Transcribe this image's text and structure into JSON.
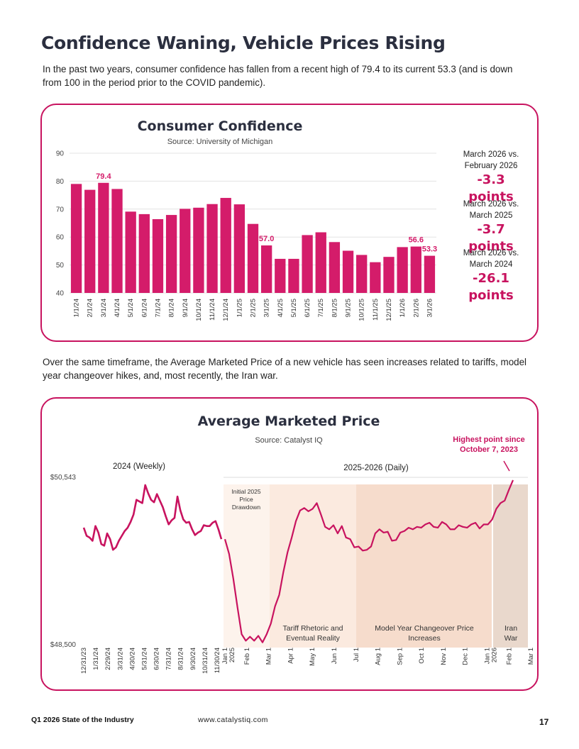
{
  "page": {
    "title": "Confidence Waning, Vehicle Prices Rising",
    "intro": "In the past two years, consumer confidence has fallen from a recent high of 79.4 to its current 53.3 (and is down from 100 in the period prior to the COVID pandemic).",
    "mid_text": "Over the same timeframe, the Average Marketed Price of a new vehicle has seen increases related to tariffs, model year changeover hikes, and, most recently, the Iran war.",
    "footer_left": "Q1 2026 State of the Industry",
    "footer_mid": "www.catalystiq.com",
    "page_number": "17"
  },
  "stats": [
    {
      "label": "March 2026 vs. February 2026",
      "value": "-3.3 points"
    },
    {
      "label": "March 2026 vs. March 2025",
      "value": "-3.7 points"
    },
    {
      "label": "March 2026 vs. March 2024",
      "value": "-26.1 points"
    }
  ],
  "colors": {
    "accent": "#c8135f",
    "title": "#2b2f3f"
  },
  "chart_data": [
    {
      "type": "bar",
      "title": "Consumer Confidence",
      "subtitle": "Source: University of Michigan",
      "categories": [
        "1/1/24",
        "2/1/24",
        "3/1/24",
        "4/1/24",
        "5/1/24",
        "6/1/24",
        "7/1/24",
        "8/1/24",
        "9/1/24",
        "10/1/24",
        "11/1/24",
        "12/1/24",
        "1/1/25",
        "2/1/25",
        "3/1/25",
        "4/1/25",
        "5/1/25",
        "6/1/25",
        "7/1/25",
        "8/1/25",
        "9/1/25",
        "10/1/25",
        "11/1/25",
        "12/1/25",
        "1/1/26",
        "2/1/26",
        "3/1/26"
      ],
      "values": [
        79.0,
        76.9,
        79.4,
        77.2,
        69.1,
        68.2,
        66.4,
        67.9,
        70.1,
        70.5,
        71.8,
        74.0,
        71.7,
        64.7,
        57.0,
        52.2,
        52.2,
        60.7,
        61.7,
        58.2,
        55.1,
        53.6,
        51.0,
        52.9,
        56.4,
        56.6,
        53.3
      ],
      "data_labels": [
        {
          "index": 2,
          "text": "79.4"
        },
        {
          "index": 14,
          "text": "57.0"
        },
        {
          "index": 25,
          "text": "56.6"
        },
        {
          "index": 26,
          "text": "53.3"
        }
      ],
      "ylim": [
        40,
        90
      ],
      "yticks": [
        40,
        50,
        60,
        70,
        80,
        90
      ],
      "grid": true,
      "color": "#d41c6a"
    },
    {
      "type": "line",
      "title": "Average Marketed Price",
      "subtitle": "Source:  Catalyst IQ",
      "ylim": [
        48500,
        50543
      ],
      "ytick_labels": [
        "$48,500",
        "$50,543"
      ],
      "section_labels": [
        "2024 (Weekly)",
        "2025-2026 (Daily)"
      ],
      "x_labels_weekly": [
        "12/31/23",
        "1/31/24",
        "2/29/24",
        "3/31/24",
        "4/30/24",
        "5/31/24",
        "6/30/24",
        "7/31/24",
        "8/31/24",
        "9/30/24",
        "10/31/24",
        "11/30/24"
      ],
      "x_labels_daily": [
        "Jan 1 2025",
        "Feb 1",
        "Mar 1",
        "Apr 1",
        "May 1",
        "Jun 1",
        "Jul 1",
        "Aug 1",
        "Sep 1",
        "Oct 1",
        "Nov 1",
        "Dec 1",
        "Jan 1 2026",
        "Feb 1",
        "Mar 1"
      ],
      "bands": [
        {
          "label": "Initial 2025 Price Drawdown",
          "color": "#fdf3ec"
        },
        {
          "label": "Tariff Rhetoric and Eventual Reality",
          "color": "#fbeadf"
        },
        {
          "label": "Model Year Changeover Price Increases",
          "color": "#f6dccc"
        },
        {
          "label": "Iran War",
          "color": "#e9d8cc"
        }
      ],
      "annotation": "Highest point since October 7, 2023",
      "weekly_values": [
        49920,
        49820,
        49800,
        49760,
        49940,
        49860,
        49720,
        49700,
        49850,
        49780,
        49650,
        49680,
        49760,
        49820,
        49880,
        49920,
        49990,
        50080,
        50260,
        50240,
        50220,
        50440,
        50340,
        50260,
        50230,
        50330,
        50250,
        50170,
        50060,
        49960,
        50010,
        50040,
        50300,
        50130,
        50020,
        49980,
        49990,
        49900,
        49830,
        49860,
        49880,
        49950,
        49940,
        49940,
        49980,
        50000,
        49900,
        49780
      ],
      "daily_values": [
        49780,
        49600,
        49300,
        48950,
        48620,
        48540,
        48590,
        48540,
        48600,
        48520,
        48620,
        48750,
        48960,
        49100,
        49380,
        49620,
        49800,
        50000,
        50130,
        50160,
        50120,
        50150,
        50220,
        50080,
        49930,
        49900,
        49950,
        49850,
        49940,
        49800,
        49780,
        49680,
        49690,
        49640,
        49650,
        49690,
        49850,
        49900,
        49860,
        49870,
        49760,
        49770,
        49860,
        49880,
        49920,
        49900,
        49930,
        49920,
        49960,
        49980,
        49930,
        49920,
        49990,
        49960,
        49900,
        49900,
        49950,
        49930,
        49920,
        49960,
        49980,
        49910,
        49960,
        49960,
        50020,
        50150,
        50220,
        50250,
        50380,
        50500
      ]
    }
  ]
}
